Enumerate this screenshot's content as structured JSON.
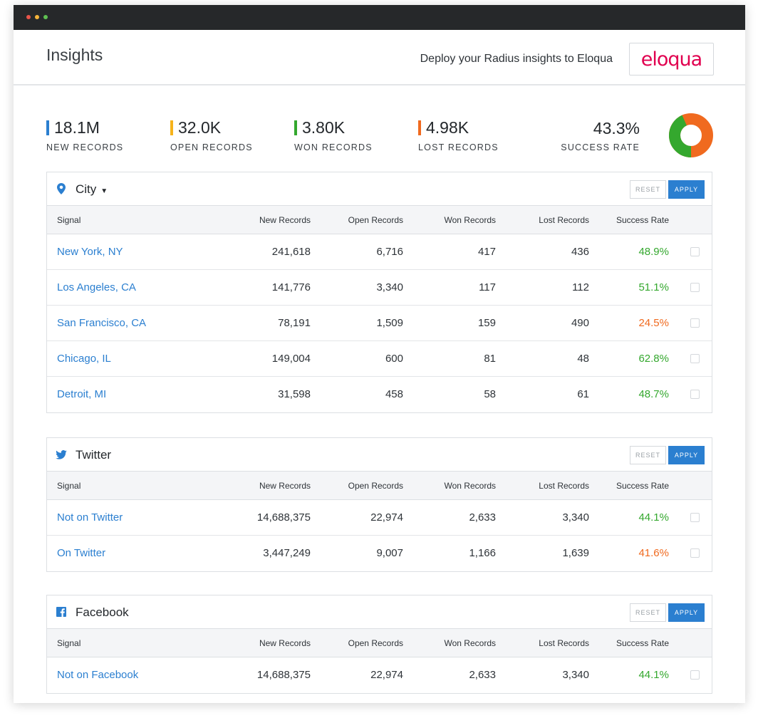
{
  "window": {
    "dots": [
      "#e8544a",
      "#f5b43a",
      "#5fc152"
    ]
  },
  "header": {
    "title": "Insights",
    "deploy_text": "Deploy your Radius insights to Eloqua",
    "eloqua_logo": "eloqua"
  },
  "colors": {
    "accent": "#2b7fd0",
    "green": "#34a82e",
    "orange": "#f06a1f",
    "new_bar": "#2b7fd0",
    "open_bar": "#f6b31b",
    "won_bar": "#34a82e",
    "lost_bar": "#f06a1f"
  },
  "stats": [
    {
      "value": "18.1M",
      "label": "NEW RECORDS",
      "color": "#2b7fd0"
    },
    {
      "value": "32.0K",
      "label": "OPEN RECORDS",
      "color": "#f6b31b"
    },
    {
      "value": "3.80K",
      "label": "WON RECORDS",
      "color": "#34a82e"
    },
    {
      "value": "4.98K",
      "label": "LOST RECORDS",
      "color": "#f06a1f"
    }
  ],
  "success": {
    "value": "43.3%",
    "label": "SUCCESS RATE",
    "fraction": 0.433
  },
  "columns": [
    "Signal",
    "New Records",
    "Open Records",
    "Won Records",
    "Lost Records",
    "Success Rate"
  ],
  "buttons": {
    "reset": "RESET",
    "apply": "APPLY"
  },
  "panels": [
    {
      "title": "City",
      "icon": "map-pin-icon",
      "has_dropdown": true,
      "rows": [
        {
          "signal": "New York, NY",
          "new": "241,618",
          "open": "6,716",
          "won": "417",
          "lost": "436",
          "rate": "48.9%",
          "rate_status": "good"
        },
        {
          "signal": "Los Angeles, CA",
          "new": "141,776",
          "open": "3,340",
          "won": "117",
          "lost": "112",
          "rate": "51.1%",
          "rate_status": "good"
        },
        {
          "signal": "San Francisco, CA",
          "new": "78,191",
          "open": "1,509",
          "won": "159",
          "lost": "490",
          "rate": "24.5%",
          "rate_status": "bad"
        },
        {
          "signal": "Chicago, IL",
          "new": "149,004",
          "open": "600",
          "won": "81",
          "lost": "48",
          "rate": "62.8%",
          "rate_status": "good"
        },
        {
          "signal": "Detroit, MI",
          "new": "31,598",
          "open": "458",
          "won": "58",
          "lost": "61",
          "rate": "48.7%",
          "rate_status": "good"
        }
      ]
    },
    {
      "title": "Twitter",
      "icon": "twitter-bird-icon",
      "has_dropdown": false,
      "rows": [
        {
          "signal": "Not on Twitter",
          "new": "14,688,375",
          "open": "22,974",
          "won": "2,633",
          "lost": "3,340",
          "rate": "44.1%",
          "rate_status": "good"
        },
        {
          "signal": "On Twitter",
          "new": "3,447,249",
          "open": "9,007",
          "won": "1,166",
          "lost": "1,639",
          "rate": "41.6%",
          "rate_status": "bad"
        }
      ]
    },
    {
      "title": "Facebook",
      "icon": "facebook-icon",
      "has_dropdown": false,
      "rows": [
        {
          "signal": "Not on Facebook",
          "new": "14,688,375",
          "open": "22,974",
          "won": "2,633",
          "lost": "3,340",
          "rate": "44.1%",
          "rate_status": "good"
        }
      ]
    }
  ]
}
